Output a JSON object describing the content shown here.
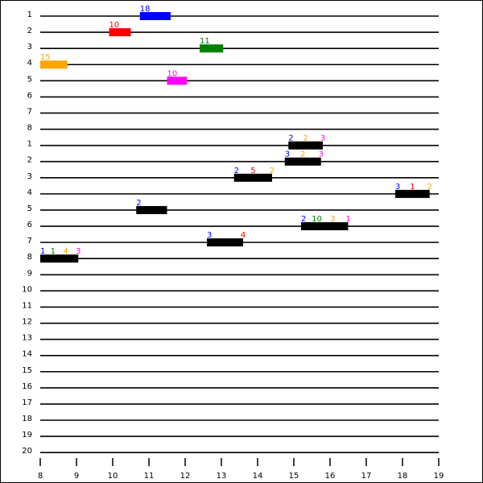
{
  "chart_data": {
    "type": "bar",
    "row_labels": [
      "1",
      "2",
      "3",
      "4",
      "5",
      "6",
      "7",
      "8",
      "1",
      "2",
      "3",
      "4",
      "5",
      "6",
      "7",
      "8",
      "9",
      "10",
      "11",
      "12",
      "13",
      "14",
      "15",
      "16",
      "17",
      "18",
      "19",
      "20"
    ],
    "x_ticks": [
      "8",
      "9",
      "10",
      "11",
      "12",
      "13",
      "14",
      "15",
      "16",
      "17",
      "18",
      "19"
    ],
    "xlim": [
      8,
      19
    ],
    "grid": true,
    "legend": "none",
    "bars": [
      {
        "row": 0,
        "start": 10.75,
        "end": 11.6,
        "color": "#0000ff",
        "labels": [
          {
            "text": "18",
            "color": "#0000ff"
          }
        ]
      },
      {
        "row": 1,
        "start": 9.9,
        "end": 10.5,
        "color": "#ff0000",
        "labels": [
          {
            "text": "10",
            "color": "#ff0000"
          }
        ]
      },
      {
        "row": 2,
        "start": 12.4,
        "end": 13.05,
        "color": "#008000",
        "labels": [
          {
            "text": "11",
            "color": "#008000"
          }
        ]
      },
      {
        "row": 3,
        "start": 8.0,
        "end": 8.75,
        "color": "#ffa500",
        "labels": [
          {
            "text": "15",
            "color": "#ffa500"
          }
        ]
      },
      {
        "row": 4,
        "start": 11.5,
        "end": 12.05,
        "color": "#ff00ff",
        "labels": [
          {
            "text": "10",
            "color": "#ff00ff"
          }
        ]
      },
      {
        "row": 8,
        "start": 14.85,
        "end": 15.8,
        "color": "#000000",
        "labels": [
          {
            "text": "2",
            "color": "#0000ff"
          },
          {
            "text": "2",
            "color": "#ffa500"
          },
          {
            "text": "3",
            "color": "#ff00ff"
          }
        ]
      },
      {
        "row": 9,
        "start": 14.75,
        "end": 15.75,
        "color": "#000000",
        "labels": [
          {
            "text": "3",
            "color": "#0000ff"
          },
          {
            "text": "2",
            "color": "#ffa500"
          },
          {
            "text": "3",
            "color": "#ff00ff"
          }
        ]
      },
      {
        "row": 10,
        "start": 13.35,
        "end": 14.4,
        "color": "#000000",
        "labels": [
          {
            "text": "2",
            "color": "#0000ff"
          },
          {
            "text": "5",
            "color": "#ff0000"
          },
          {
            "text": "2",
            "color": "#ffa500"
          }
        ]
      },
      {
        "row": 11,
        "start": 17.8,
        "end": 18.75,
        "color": "#000000",
        "labels": [
          {
            "text": "3",
            "color": "#0000ff"
          },
          {
            "text": "1",
            "color": "#ff0000"
          },
          {
            "text": "2",
            "color": "#ffa500"
          }
        ]
      },
      {
        "row": 12,
        "start": 10.65,
        "end": 11.5,
        "color": "#000000",
        "labels": [
          {
            "text": "2",
            "color": "#0000ff"
          }
        ]
      },
      {
        "row": 13,
        "start": 15.2,
        "end": 16.5,
        "color": "#000000",
        "labels": [
          {
            "text": "2",
            "color": "#0000ff"
          },
          {
            "text": "10",
            "color": "#008000"
          },
          {
            "text": "3",
            "color": "#ffa500"
          },
          {
            "text": "1",
            "color": "#ff00ff"
          }
        ]
      },
      {
        "row": 14,
        "start": 12.6,
        "end": 13.6,
        "color": "#000000",
        "labels": [
          {
            "text": "3",
            "color": "#0000ff"
          },
          {
            "text": "4",
            "color": "#ff0000"
          }
        ]
      },
      {
        "row": 15,
        "start": 8.0,
        "end": 9.05,
        "color": "#000000",
        "labels": [
          {
            "text": "1",
            "color": "#0000ff"
          },
          {
            "text": "1",
            "color": "#008000"
          },
          {
            "text": "4",
            "color": "#ffa500"
          },
          {
            "text": "3",
            "color": "#ff00ff"
          }
        ]
      }
    ]
  }
}
